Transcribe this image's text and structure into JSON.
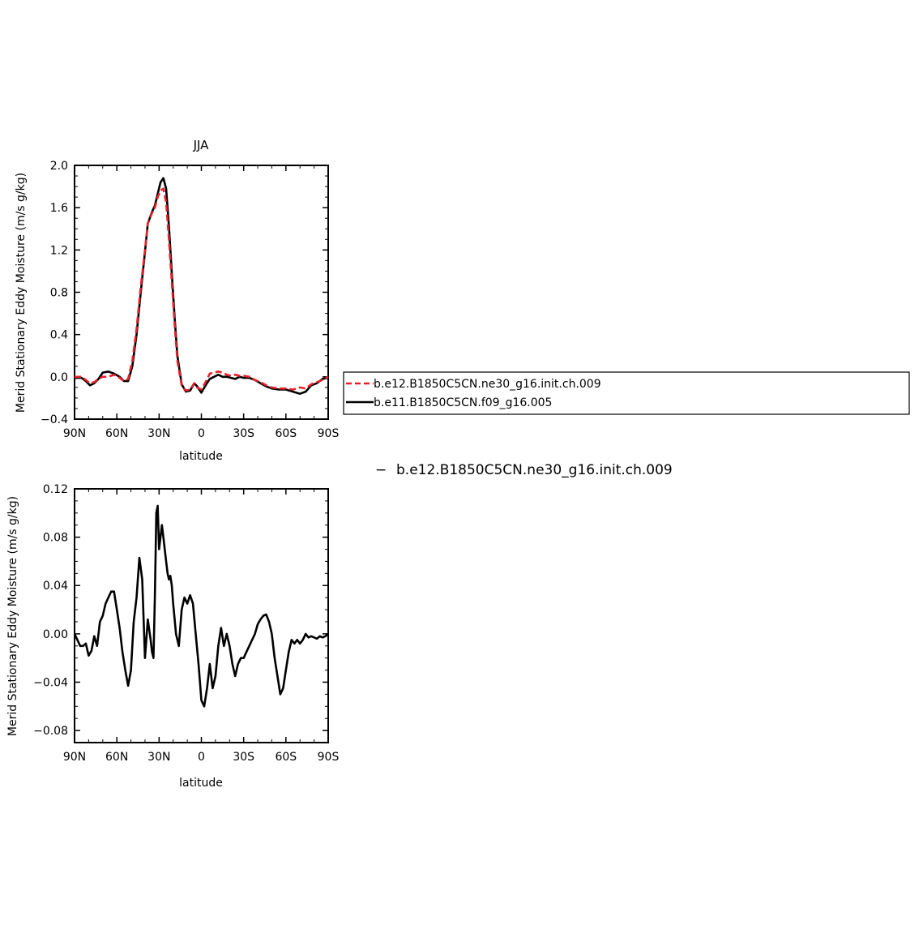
{
  "chart_data": [
    {
      "type": "line",
      "title": "JJA",
      "xlabel": "latitude",
      "ylabel": "Merid Stationary Eddy Moisture (m/s g/kg)",
      "xlim": [
        90,
        -90
      ],
      "ylim": [
        -0.4,
        2.0
      ],
      "x_ticks": [
        90,
        60,
        30,
        0,
        -30,
        -60,
        -90
      ],
      "x_tick_labels": [
        "90N",
        "60N",
        "30N",
        "0",
        "30S",
        "60S",
        "90S"
      ],
      "y_ticks": [
        -0.4,
        0.0,
        0.4,
        0.8,
        1.2,
        1.6,
        2.0
      ],
      "y_tick_labels": [
        "−0.4",
        "0.0",
        "0.4",
        "0.8",
        "1.2",
        "1.6",
        "2.0"
      ],
      "legend_position": "right",
      "series": [
        {
          "name": "b.e12.B1850C5CN.ne30_g16.init.ch.009",
          "color": "#e8202a",
          "dash": true,
          "x": [
            90,
            85,
            82,
            79,
            76,
            73,
            70,
            66,
            62,
            58,
            55,
            52,
            49,
            46,
            43,
            40,
            38,
            35,
            33,
            31,
            29,
            27,
            25,
            23,
            21,
            19,
            17,
            14,
            11,
            8,
            5,
            3,
            0,
            -3,
            -6,
            -9,
            -12,
            -15,
            -18,
            -21,
            -24,
            -27,
            -30,
            -34,
            -38,
            -42,
            -46,
            -50,
            -55,
            -60,
            -65,
            -70,
            -74,
            -78,
            -82,
            -86,
            -90
          ],
          "y": [
            0.0,
            0.0,
            -0.03,
            -0.06,
            -0.05,
            -0.02,
            0.0,
            0.0,
            0.02,
            -0.01,
            -0.04,
            -0.02,
            0.15,
            0.45,
            0.85,
            1.2,
            1.45,
            1.55,
            1.6,
            1.7,
            1.76,
            1.78,
            1.65,
            1.3,
            0.9,
            0.5,
            0.15,
            -0.08,
            -0.13,
            -0.12,
            -0.06,
            -0.1,
            -0.12,
            -0.05,
            0.03,
            0.04,
            0.05,
            0.04,
            0.02,
            0.01,
            0.02,
            0.01,
            0.01,
            0.0,
            -0.03,
            -0.05,
            -0.08,
            -0.1,
            -0.11,
            -0.11,
            -0.12,
            -0.1,
            -0.11,
            -0.07,
            -0.05,
            -0.03,
            0.0
          ]
        },
        {
          "name": "b.e11.B1850C5CN.f09_g16.005",
          "color": "#000000",
          "dash": false,
          "x": [
            90,
            85,
            82,
            79,
            76,
            73,
            70,
            66,
            62,
            58,
            55,
            52,
            49,
            46,
            43,
            40,
            38,
            35,
            33,
            31,
            29,
            27,
            25,
            23,
            21,
            19,
            17,
            14,
            11,
            8,
            5,
            3,
            0,
            -3,
            -6,
            -9,
            -12,
            -15,
            -18,
            -21,
            -24,
            -27,
            -30,
            -34,
            -38,
            -42,
            -46,
            -50,
            -55,
            -60,
            -65,
            -70,
            -74,
            -78,
            -82,
            -86,
            -90
          ],
          "y": [
            -0.01,
            -0.01,
            -0.04,
            -0.08,
            -0.06,
            -0.02,
            0.04,
            0.05,
            0.03,
            0.0,
            -0.04,
            -0.04,
            0.1,
            0.4,
            0.8,
            1.18,
            1.45,
            1.56,
            1.62,
            1.73,
            1.84,
            1.88,
            1.78,
            1.42,
            0.98,
            0.56,
            0.2,
            -0.07,
            -0.14,
            -0.13,
            -0.06,
            -0.09,
            -0.15,
            -0.08,
            -0.02,
            0.0,
            0.02,
            0.0,
            0.0,
            -0.01,
            -0.02,
            0.0,
            -0.01,
            -0.01,
            -0.03,
            -0.06,
            -0.09,
            -0.11,
            -0.12,
            -0.12,
            -0.14,
            -0.16,
            -0.14,
            -0.08,
            -0.06,
            -0.02,
            -0.01
          ]
        }
      ]
    },
    {
      "type": "line",
      "title": "",
      "xlabel": "latitude",
      "ylabel": "Merid Stationary Eddy Moisture (m/s g/kg)",
      "xlim": [
        90,
        -90
      ],
      "ylim": [
        -0.09,
        0.12
      ],
      "x_ticks": [
        90,
        60,
        30,
        0,
        -30,
        -60,
        -90
      ],
      "x_tick_labels": [
        "90N",
        "60N",
        "30N",
        "0",
        "30S",
        "60S",
        "90S"
      ],
      "y_ticks": [
        -0.08,
        -0.04,
        0.0,
        0.04,
        0.08,
        0.12
      ],
      "y_tick_labels": [
        "−0.08",
        "−0.04",
        "0.00",
        "0.04",
        "0.08",
        "0.12"
      ],
      "legend_text": "b.e12.B1850C5CN.ne30_g16.init.ch.009",
      "legend_marker": "−",
      "series": [
        {
          "name": "b.e12.B1850C5CN.ne30_g16.init.ch.009",
          "color": "#000000",
          "dash": false,
          "x": [
            90,
            88,
            86,
            84,
            82,
            80,
            78,
            76,
            74,
            72,
            70,
            68,
            66,
            64,
            62,
            60,
            58,
            56,
            54,
            52,
            50,
            48,
            46,
            44,
            42,
            40,
            38,
            36,
            35,
            34,
            33,
            32,
            31,
            30,
            28,
            27,
            26,
            25,
            24,
            23,
            22,
            21,
            20,
            18,
            16,
            14,
            12,
            10,
            8,
            6,
            4,
            2,
            0,
            -2,
            -4,
            -6,
            -8,
            -10,
            -12,
            -14,
            -16,
            -18,
            -20,
            -22,
            -24,
            -26,
            -28,
            -30,
            -32,
            -34,
            -36,
            -38,
            -40,
            -42,
            -44,
            -46,
            -48,
            -50,
            -52,
            -54,
            -56,
            -58,
            -60,
            -62,
            -64,
            -66,
            -68,
            -70,
            -72,
            -74,
            -76,
            -78,
            -80,
            -82,
            -84,
            -86,
            -88,
            -90
          ],
          "y": [
            0.0,
            -0.005,
            -0.01,
            -0.01,
            -0.008,
            -0.018,
            -0.014,
            -0.002,
            -0.01,
            0.01,
            0.015,
            0.025,
            0.03,
            0.035,
            0.035,
            0.02,
            0.005,
            -0.015,
            -0.03,
            -0.043,
            -0.03,
            0.01,
            0.03,
            0.063,
            0.045,
            -0.02,
            0.012,
            -0.005,
            -0.015,
            -0.02,
            0.03,
            0.1,
            0.106,
            0.07,
            0.09,
            0.08,
            0.07,
            0.06,
            0.05,
            0.045,
            0.048,
            0.04,
            0.025,
            0.0,
            -0.01,
            0.02,
            0.03,
            0.025,
            0.032,
            0.025,
            0.0,
            -0.025,
            -0.055,
            -0.06,
            -0.045,
            -0.025,
            -0.045,
            -0.035,
            -0.01,
            0.005,
            -0.01,
            0.0,
            -0.01,
            -0.025,
            -0.035,
            -0.025,
            -0.02,
            -0.02,
            -0.015,
            -0.01,
            -0.005,
            0.0,
            0.008,
            0.012,
            0.015,
            0.016,
            0.01,
            0.0,
            -0.02,
            -0.035,
            -0.05,
            -0.045,
            -0.03,
            -0.015,
            -0.005,
            -0.008,
            -0.005,
            -0.008,
            -0.005,
            0.0,
            -0.003,
            -0.002,
            -0.003,
            -0.004,
            -0.002,
            -0.003,
            -0.002,
            0.0
          ]
        }
      ]
    }
  ]
}
